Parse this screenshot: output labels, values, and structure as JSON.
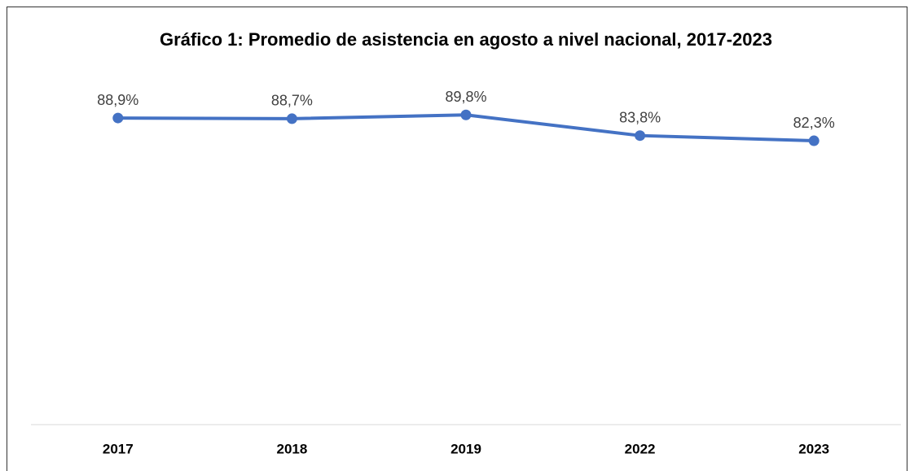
{
  "chart_data": {
    "type": "line",
    "title": "Gráfico 1: Promedio de asistencia en agosto a nivel nacional, 2017-2023",
    "categories": [
      "2017",
      "2018",
      "2019",
      "2022",
      "2023"
    ],
    "series": [
      {
        "color": "#4472c4",
        "values": [
          88.9,
          88.7,
          89.8,
          83.8,
          82.3
        ],
        "value_labels": [
          "88,9%",
          "88,7%",
          "89,8%",
          "83,8%",
          "82,3%"
        ]
      }
    ],
    "ylim": [
      0,
      100
    ]
  }
}
